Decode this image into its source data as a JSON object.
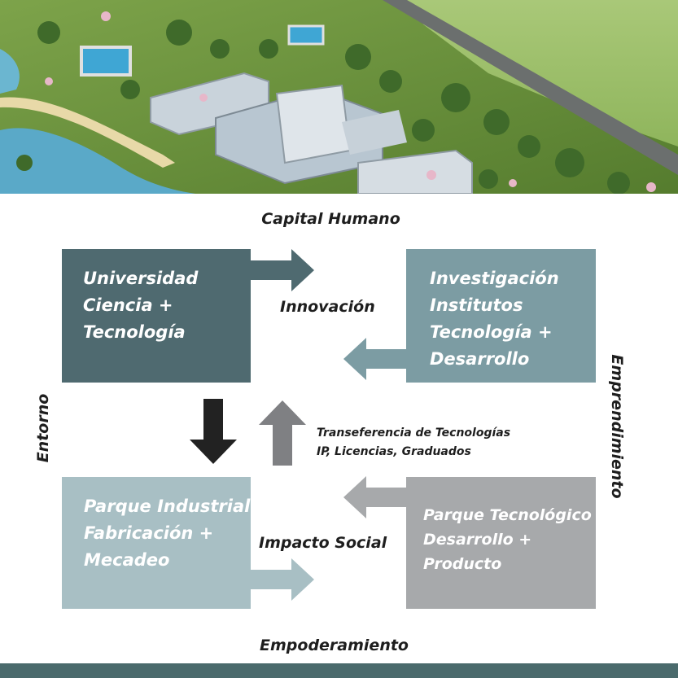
{
  "header_photo": {
    "description_icon": "campus-aerial-photo-icon"
  },
  "labels": {
    "top": "Capital Humano",
    "bottom": "Empoderamiento",
    "left": "Entorno",
    "right": "Emprendimiento",
    "center_top": "Innovación",
    "center_bottom": "Impacto Social",
    "transfer_line1": "Transeferencia de Tecnologías",
    "transfer_line2": "IP, Licencias, Graduados"
  },
  "boxes": {
    "universidad": {
      "lines": [
        "Universidad",
        "Ciencia +",
        "Tecnología"
      ],
      "color": "#4f6a70"
    },
    "investigacion": {
      "lines": [
        "Investigación",
        "Institutos",
        "Tecnología +",
        "Desarrollo"
      ],
      "color": "#7c9ca3"
    },
    "parque_industrial": {
      "lines": [
        "Parque Industrial",
        "Fabricación +",
        "Mecadeo"
      ],
      "color": "#a8bfc4"
    },
    "parque_tecnologico": {
      "lines": [
        "Parque Tecnológico",
        "Desarrollo +",
        "Producto"
      ],
      "color": "#a7a9ab"
    }
  },
  "colors": {
    "footer_bar": "#4a6a6c",
    "arrow_dark": "#222222",
    "arrow_mid": "#7f8083"
  }
}
